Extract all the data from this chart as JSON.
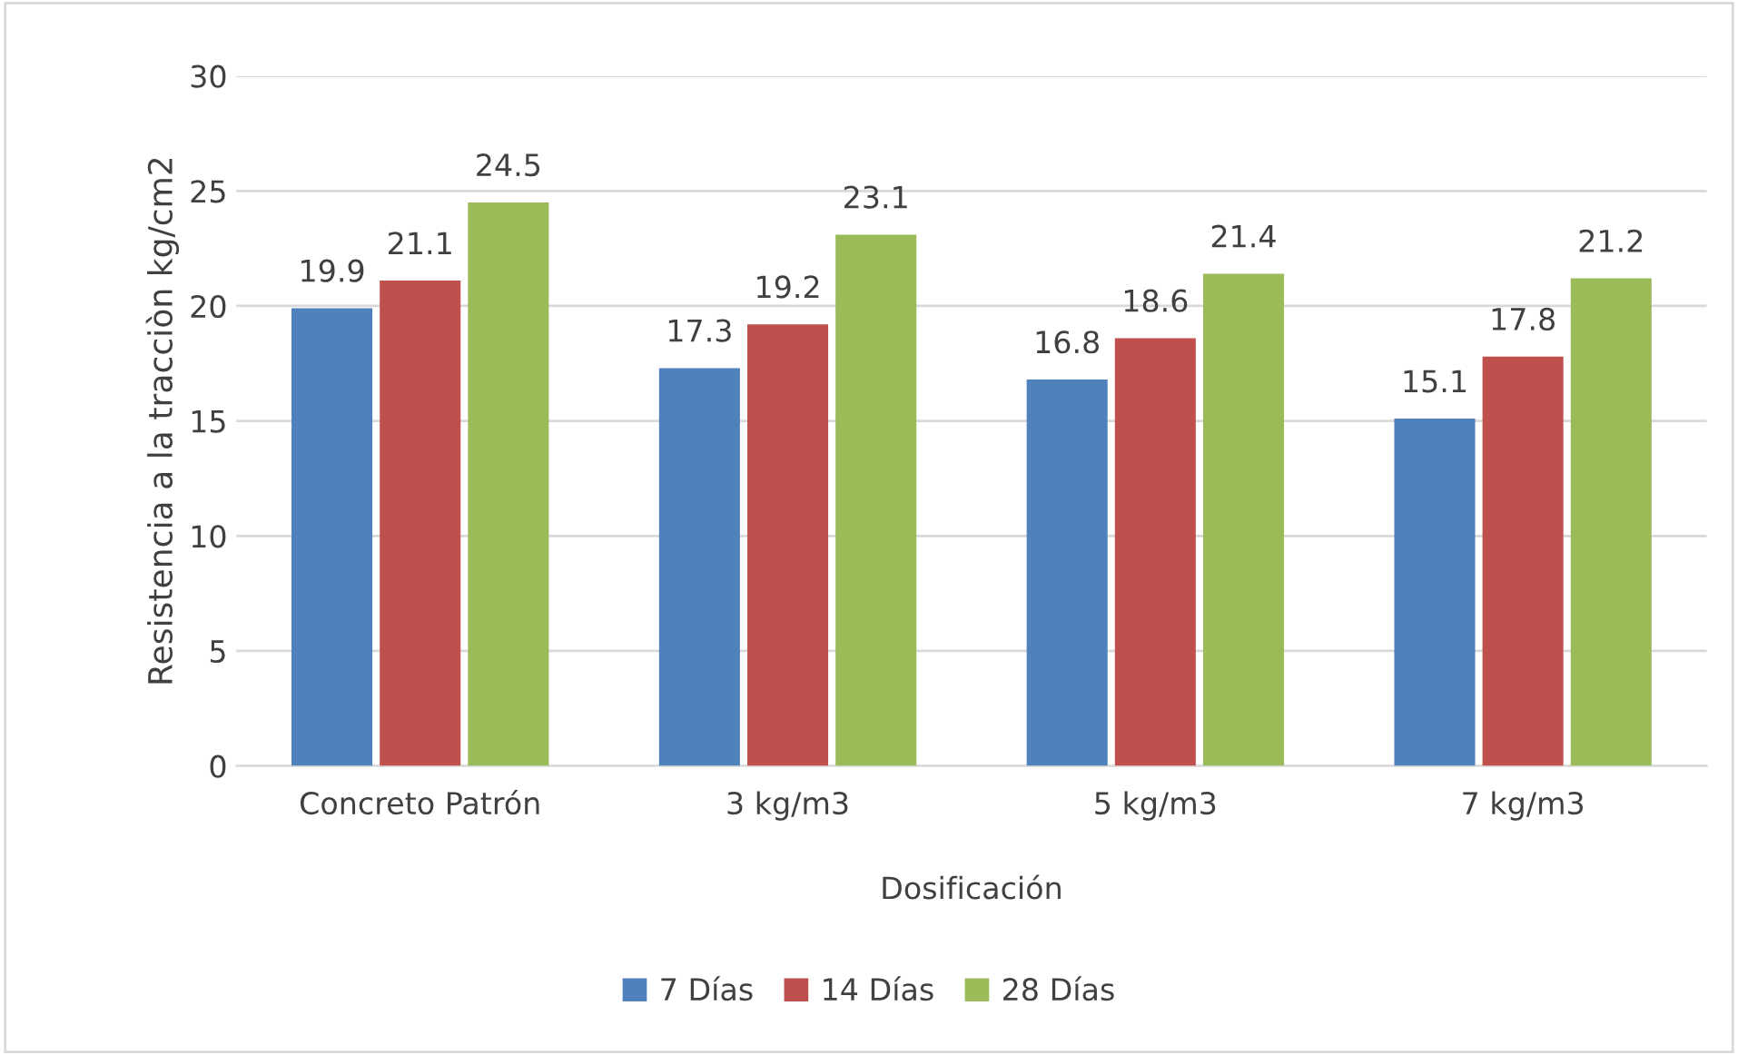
{
  "chart_data": {
    "type": "bar",
    "xlabel": "Dosificación",
    "ylabel": "Resistencia a la tracciòn kg/cm2",
    "categories": [
      "Concreto Patrón",
      "3 kg/m3",
      "5 kg/m3",
      "7 kg/m3"
    ],
    "series": [
      {
        "name": "7 Días",
        "color": "#4f81bd",
        "values": [
          19.9,
          17.3,
          16.8,
          15.1
        ]
      },
      {
        "name": "14 Días",
        "color": "#c0504d",
        "values": [
          21.1,
          19.2,
          18.6,
          17.8
        ]
      },
      {
        "name": "28 Días",
        "color": "#9bbb59",
        "values": [
          24.5,
          23.1,
          21.4,
          21.2
        ]
      }
    ],
    "ylim": [
      0,
      30
    ],
    "yticks": [
      0,
      5,
      10,
      15,
      20,
      25,
      30
    ],
    "grid": "y",
    "data_labels": true,
    "legend": "bottom"
  }
}
